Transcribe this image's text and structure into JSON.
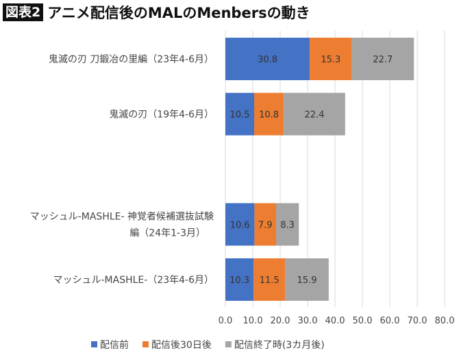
{
  "title": {
    "badge": "図表2",
    "text": "アニメ配信後のMALのMenbersの動き"
  },
  "chart_data": {
    "type": "bar",
    "orientation": "horizontal",
    "stacked": true,
    "categories": [
      [
        "鬼滅の刃 刀鍛冶の里編（23年4-6月）"
      ],
      [
        "鬼滅の刃（19年4-6月）"
      ],
      [
        ""
      ],
      [
        "マッシュル-MASHLE- 神覚者候補選抜試験",
        "編（24年1-3月）"
      ],
      [
        "マッシュル-MASHLE-（23年4-6月）"
      ]
    ],
    "series": [
      {
        "name": "配信前",
        "color": "#4472C4",
        "values": [
          30.8,
          10.5,
          null,
          10.6,
          10.3
        ]
      },
      {
        "name": "配信後30日後",
        "color": "#ED7D31",
        "values": [
          15.3,
          10.8,
          null,
          7.9,
          11.5
        ]
      },
      {
        "name": "配信終了時(3カ月後)",
        "color": "#A5A5A5",
        "values": [
          22.7,
          22.4,
          null,
          8.3,
          15.9
        ]
      }
    ],
    "xlim": [
      0,
      80
    ],
    "xticks": [
      "0.0",
      "10.0",
      "20.0",
      "30.0",
      "40.0",
      "50.0",
      "60.0",
      "70.0",
      "80.0"
    ],
    "grid": true,
    "legend": "bottom"
  }
}
